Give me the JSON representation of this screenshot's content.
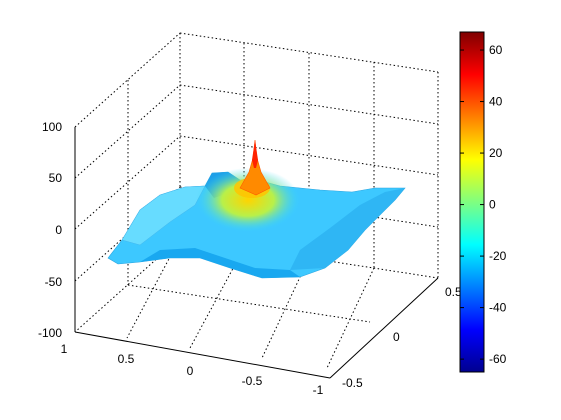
{
  "chart_data": {
    "type": "surface",
    "title": "",
    "xlabel": "",
    "ylabel": "",
    "zlabel": "",
    "grid": true,
    "colormap": "jet",
    "x_ticks": [
      "1",
      "0.5",
      "0",
      "-0.5",
      "-1"
    ],
    "y_ticks": [
      "-0.5",
      "0",
      "0.5"
    ],
    "z_ticks": [
      "100",
      "50",
      "0",
      "-50",
      "-100"
    ],
    "zlim": [
      -100,
      100
    ],
    "colorbar": {
      "range": [
        -65,
        67
      ],
      "ticks": [
        "60",
        "40",
        "20",
        "0",
        "-20",
        "-40",
        "-60"
      ]
    },
    "surface_features": {
      "base_level": -8,
      "peak": {
        "x": 0.1,
        "y": 0.1,
        "z": 67
      },
      "ridge_near_x": 0.5,
      "trough_near_x": -0.45
    }
  }
}
